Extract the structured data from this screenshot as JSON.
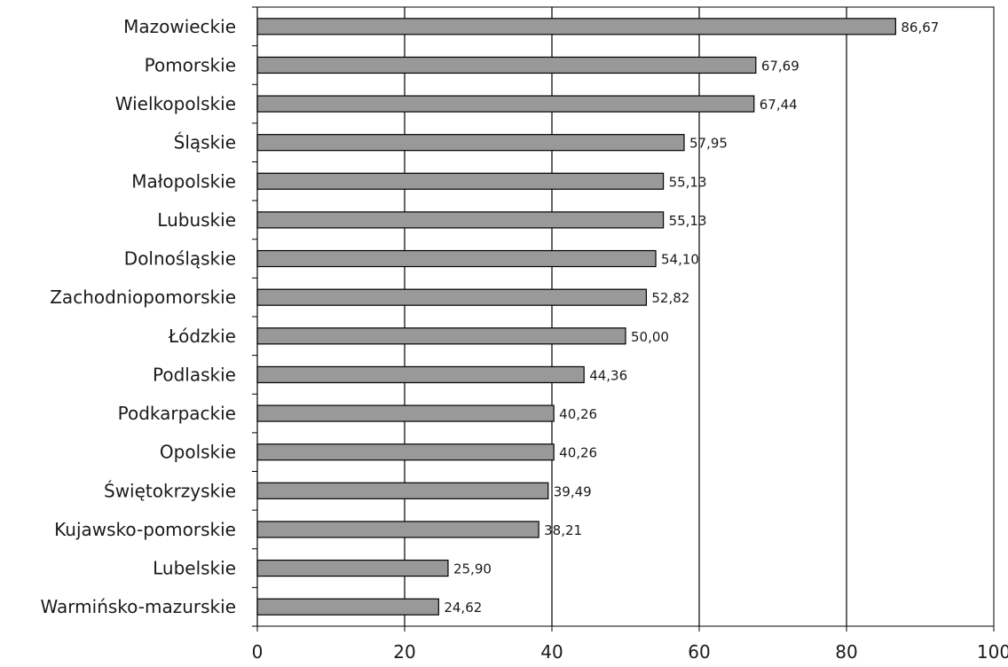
{
  "chart_data": {
    "type": "bar",
    "orientation": "horizontal",
    "categories": [
      "Mazowieckie",
      "Pomorskie",
      "Wielkopolskie",
      "Śląskie",
      "Małopolskie",
      "Lubuskie",
      "Dolnośląskie",
      "Zachodniopomorskie",
      "Łódzkie",
      "Podlaskie",
      "Podkarpackie",
      "Opolskie",
      "Świętokrzyskie",
      "Kujawsko-pomorskie",
      "Lubelskie",
      "Warmińsko-mazurskie"
    ],
    "values": [
      86.67,
      67.69,
      67.44,
      57.95,
      55.13,
      55.13,
      54.1,
      52.82,
      50.0,
      44.36,
      40.26,
      40.26,
      39.49,
      38.21,
      25.9,
      24.62
    ],
    "value_labels": [
      "86,67",
      "67,69",
      "67,44",
      "57,95",
      "55,13",
      "55,13",
      "54,10",
      "52,82",
      "50,00",
      "44,36",
      "40,26",
      "40,26",
      "39,49",
      "38,21",
      "25,90",
      "24,62"
    ],
    "xlim": [
      0,
      100
    ],
    "xticks": [
      0,
      20,
      40,
      60,
      80,
      100
    ],
    "xtick_labels": [
      "0",
      "20",
      "40",
      "60",
      "80",
      "100"
    ],
    "grid": "vertical",
    "bar_color": "#999999",
    "bar_edge_color": "#000000",
    "title": "",
    "xlabel": "",
    "ylabel": ""
  }
}
